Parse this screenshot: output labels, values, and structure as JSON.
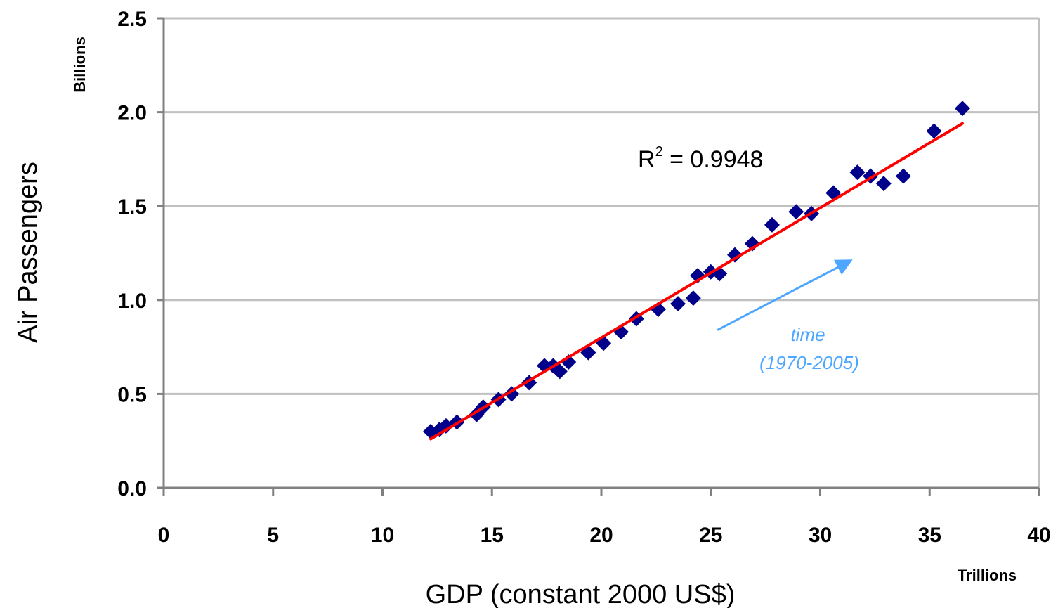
{
  "chart_data": {
    "type": "scatter",
    "xlabel": "GDP (constant 2000 US$)",
    "ylabel": "Air Passengers",
    "x_unit": "Trillions",
    "y_unit": "Billions",
    "xlim": [
      0,
      40
    ],
    "ylim": [
      0,
      2.5
    ],
    "x_ticks": [
      "0",
      "5",
      "10",
      "15",
      "20",
      "25",
      "30",
      "35",
      "40"
    ],
    "y_ticks": [
      "0.0",
      "0.5",
      "1.0",
      "1.5",
      "2.0",
      "2.5"
    ],
    "grid": "horizontal",
    "marker_color": "#00008b",
    "trend_color": "#ff0000",
    "arrow_color": "#4da6ff",
    "r_squared_label": "R",
    "r_squared_sup": "2",
    "r_squared_value": " = 0.9948",
    "time_label_line1": "time",
    "time_label_line2": "(1970-2005)",
    "series": [
      {
        "x": [
          12.2,
          12.6,
          12.9,
          13.4,
          14.3,
          14.6,
          15.3,
          15.9,
          16.7,
          17.4,
          17.8,
          18.1,
          18.5,
          19.4,
          20.1,
          20.9,
          21.6,
          22.6,
          23.5,
          24.2,
          24.4,
          25.0,
          25.4,
          26.1,
          26.9,
          27.8,
          28.9,
          29.6,
          30.6,
          31.7,
          32.3,
          32.9,
          33.8,
          35.2,
          36.5
        ],
        "y": [
          0.3,
          0.31,
          0.33,
          0.35,
          0.39,
          0.43,
          0.47,
          0.5,
          0.56,
          0.65,
          0.65,
          0.62,
          0.67,
          0.72,
          0.77,
          0.83,
          0.9,
          0.95,
          0.98,
          1.01,
          1.13,
          1.15,
          1.14,
          1.24,
          1.3,
          1.4,
          1.47,
          1.46,
          1.57,
          1.68,
          1.66,
          1.62,
          1.66,
          1.9,
          2.02
        ]
      }
    ],
    "trendline": {
      "x": [
        12.2,
        36.5
      ],
      "y": [
        0.26,
        1.94
      ]
    },
    "time_arrow": {
      "from": [
        25.3,
        0.84
      ],
      "to": [
        31.4,
        1.21
      ]
    }
  }
}
